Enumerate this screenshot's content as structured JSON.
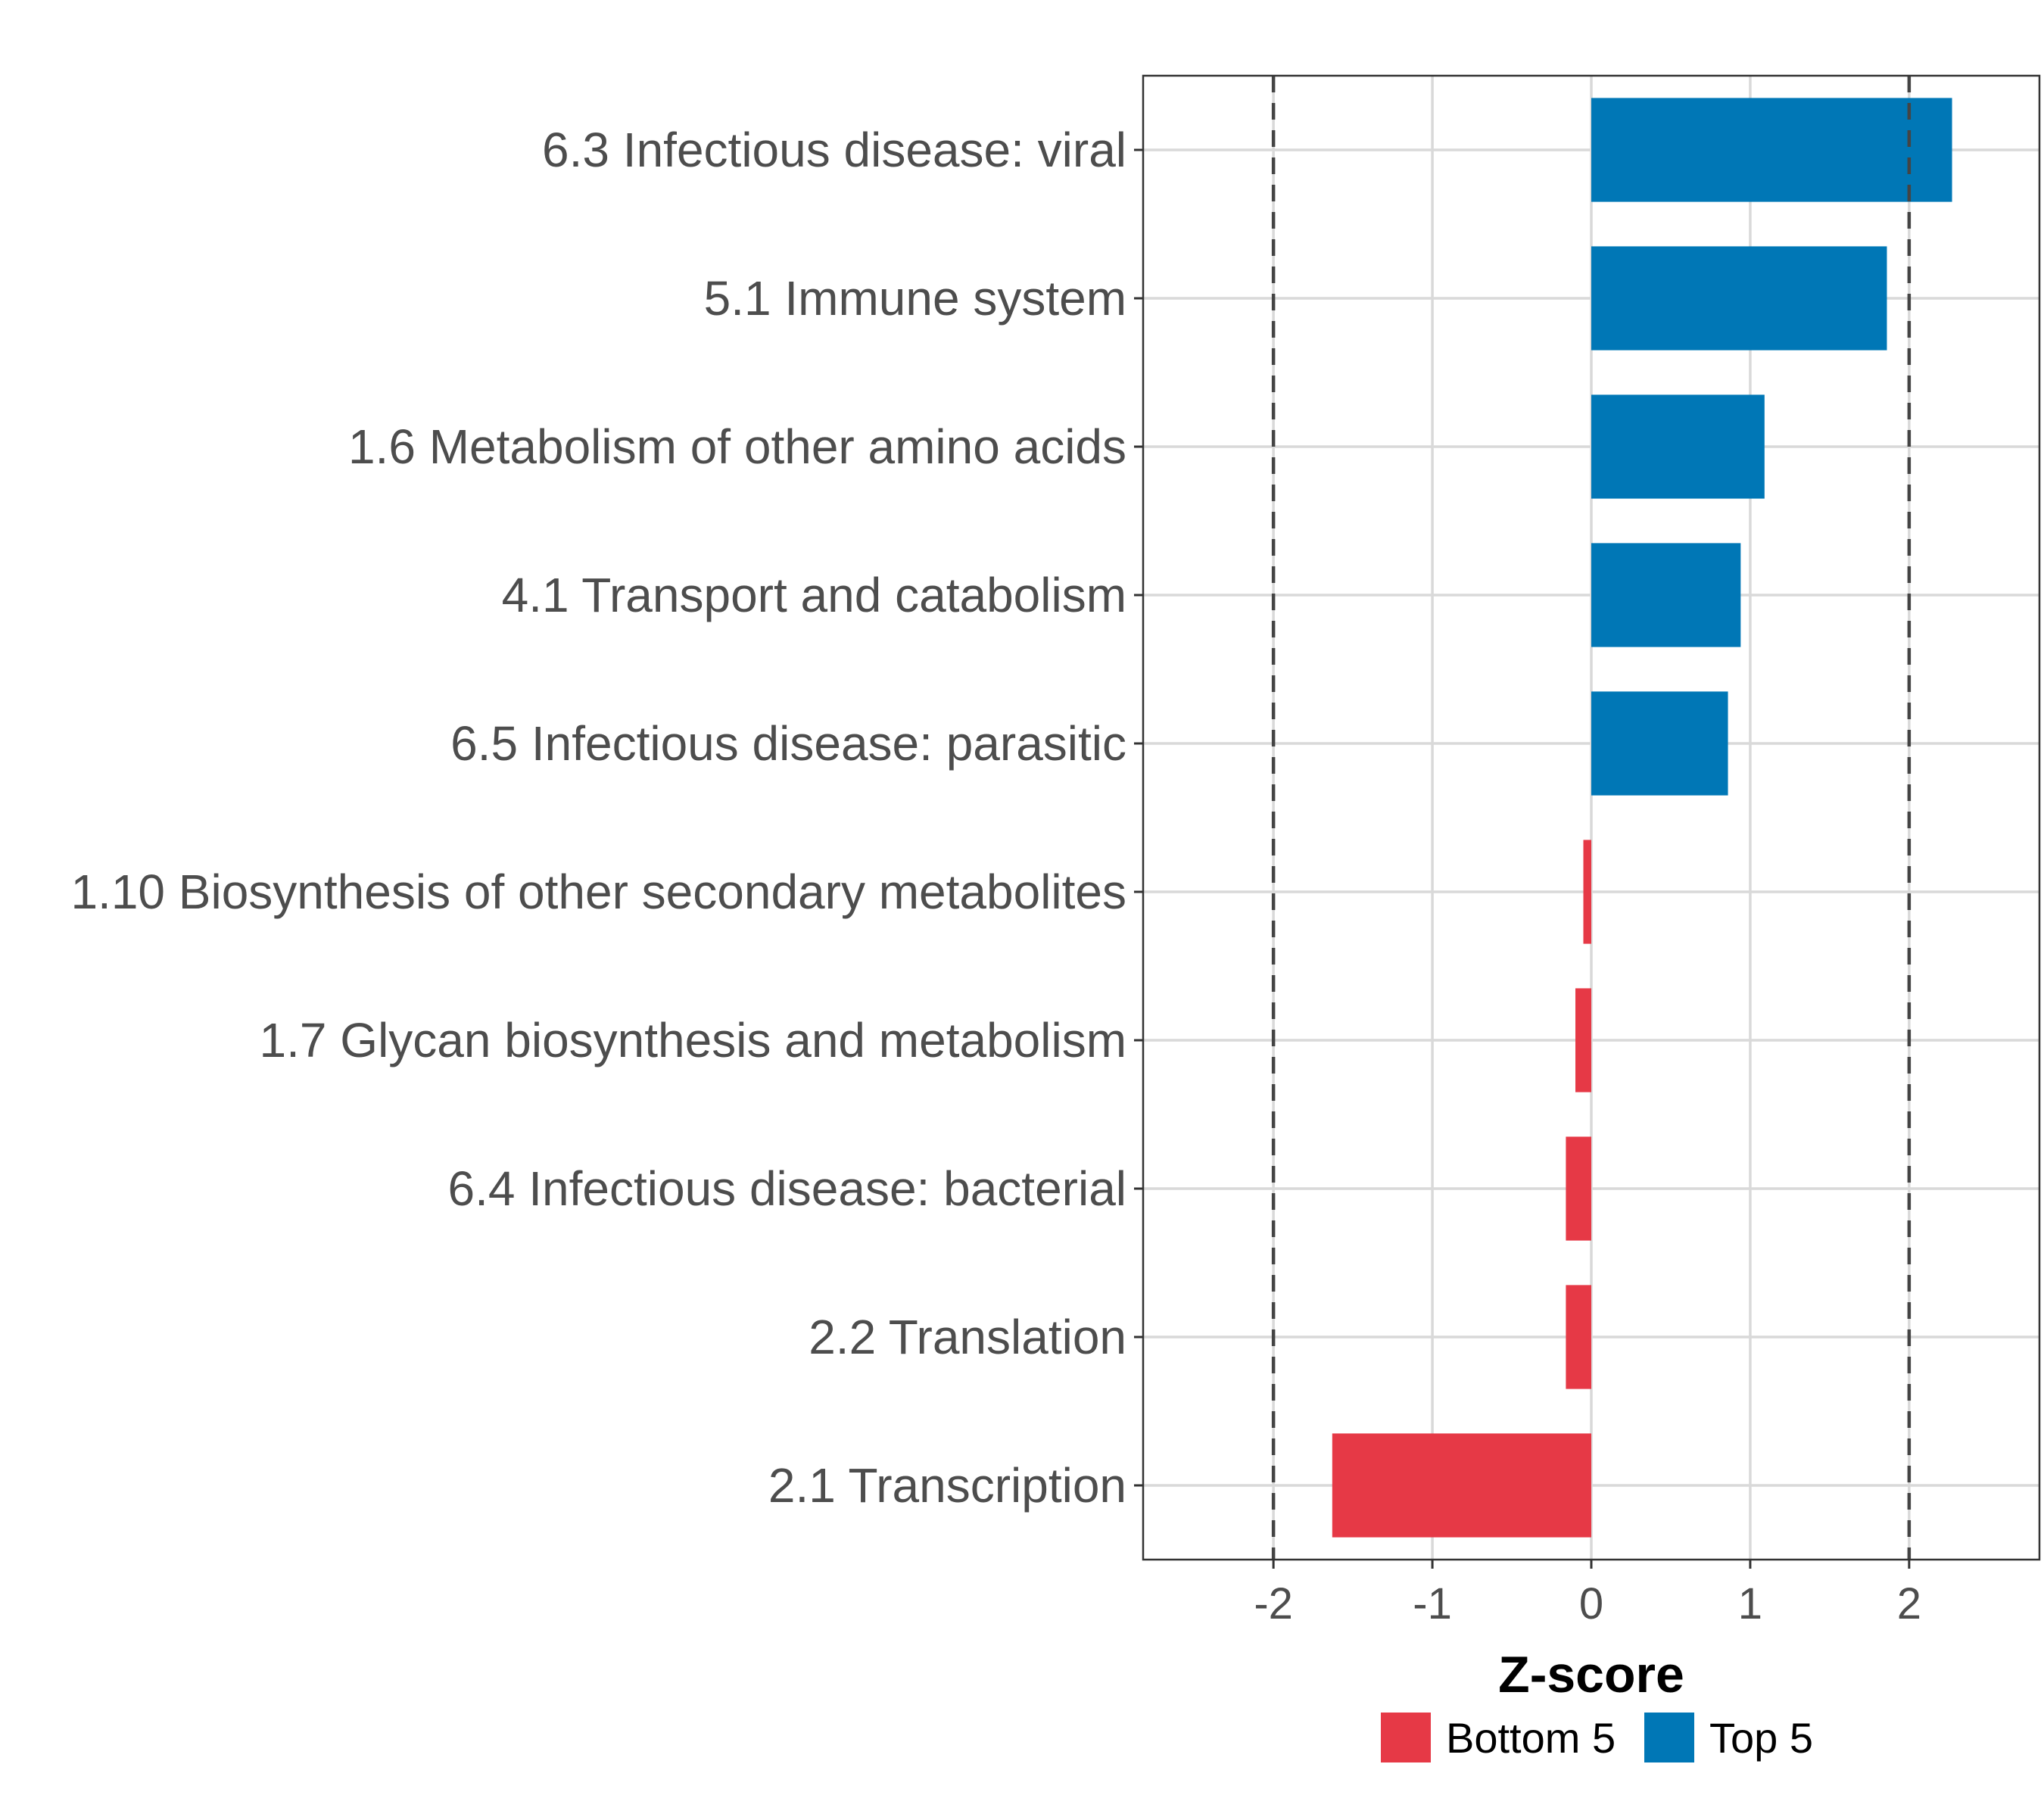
{
  "chart_data": {
    "type": "bar",
    "orientation": "horizontal",
    "title": "",
    "xlabel": "Z-score",
    "ylabel": "",
    "xlim": [
      -2.82,
      2.82
    ],
    "xticks": [
      -2,
      -1,
      0,
      1,
      2
    ],
    "xtick_labels": [
      "-2",
      "-1",
      "0",
      "1",
      "2"
    ],
    "grid": true,
    "reference_lines": [
      -2,
      2
    ],
    "categories": [
      "6.3 Infectious disease: viral",
      "5.1 Immune system",
      "1.6 Metabolism of other amino acids",
      "4.1 Transport and catabolism",
      "6.5 Infectious disease: parasitic",
      "1.10 Biosynthesis of other secondary metabolites",
      "1.7 Glycan biosynthesis and metabolism",
      "6.4 Infectious disease: bacterial",
      "2.2 Translation",
      "2.1 Transcription"
    ],
    "values": [
      2.27,
      1.86,
      1.09,
      0.94,
      0.86,
      -0.05,
      -0.1,
      -0.16,
      -0.16,
      -1.63
    ],
    "groups": [
      "Top 5",
      "Top 5",
      "Top 5",
      "Top 5",
      "Top 5",
      "Bottom 5",
      "Bottom 5",
      "Bottom 5",
      "Bottom 5",
      "Bottom 5"
    ],
    "legend": {
      "position": "bottom",
      "entries": [
        {
          "label": "Bottom 5",
          "color": "#E63946"
        },
        {
          "label": "Top 5",
          "color": "#0077B6"
        }
      ]
    },
    "colors": {
      "Bottom 5": "#E63946",
      "Top 5": "#0077B6"
    }
  }
}
